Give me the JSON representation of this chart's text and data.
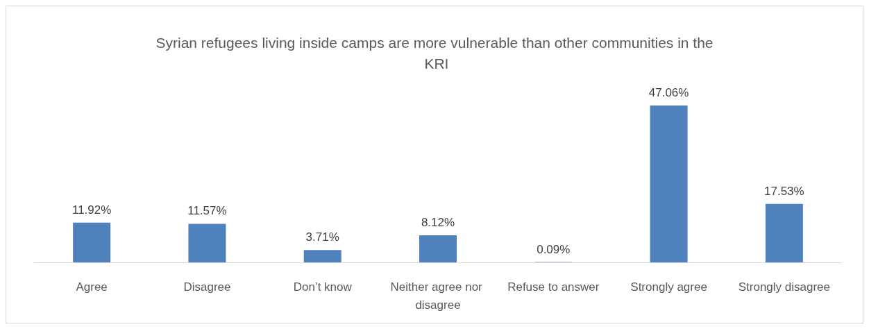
{
  "chart_data": {
    "type": "bar",
    "title": "Syrian refugees living inside camps are more vulnerable than other communities in the KRI",
    "categories": [
      "Agree",
      "Disagree",
      "Don’t know",
      "Neither agree nor disagree",
      "Refuse to answer",
      "Strongly agree",
      "Strongly disagree"
    ],
    "values": [
      11.92,
      11.57,
      3.71,
      8.12,
      0.09,
      47.06,
      17.53
    ],
    "value_labels": [
      "11.92%",
      "11.57%",
      "3.71%",
      "8.12%",
      "0.09%",
      "47.06%",
      "17.53%"
    ],
    "color": "#4f81bd"
  }
}
